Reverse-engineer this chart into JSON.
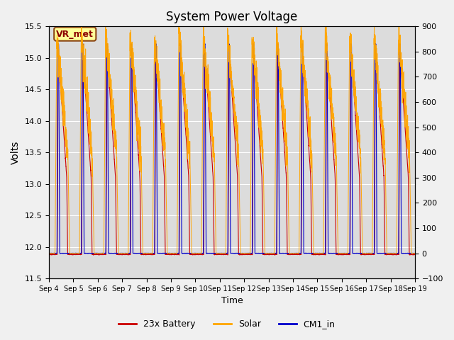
{
  "title": "System Power Voltage",
  "ylabel_left": "Volts",
  "xlabel": "Time",
  "ylim_left": [
    11.5,
    15.5
  ],
  "ylim_right": [
    -100,
    900
  ],
  "xtick_labels": [
    "Sep 4",
    "Sep 5",
    "Sep 6",
    "Sep 7",
    "Sep 8",
    "Sep 9",
    "Sep 10",
    "Sep 11",
    "Sep 12",
    "Sep 13",
    "Sep 14",
    "Sep 15",
    "Sep 16",
    "Sep 17",
    "Sep 18",
    "Sep 19"
  ],
  "annotation_text": "VR_met",
  "annotation_color": "#8B0000",
  "annotation_bg": "#FFFF99",
  "annotation_border": "#8B4513",
  "battery_color": "#CC0000",
  "solar_color": "#FFA500",
  "cm1_color": "#0000CC",
  "legend_labels": [
    "23x Battery",
    "Solar",
    "CM1_in"
  ],
  "plot_bg_color": "#DCDCDC",
  "fig_bg_color": "#F0F0F0",
  "grid_color": "#FFFFFF",
  "n_days": 15,
  "battery_base": 11.88,
  "battery_peak": 15.15,
  "solar_peak": 870,
  "solar_midday": 400,
  "cm1_base": 11.9,
  "cm1_peak": 15.22,
  "yticks_left": [
    11.5,
    12.0,
    12.5,
    13.0,
    13.5,
    14.0,
    14.5,
    15.0,
    15.5
  ],
  "yticks_right": [
    -100,
    0,
    100,
    200,
    300,
    400,
    500,
    600,
    700,
    800,
    900
  ]
}
